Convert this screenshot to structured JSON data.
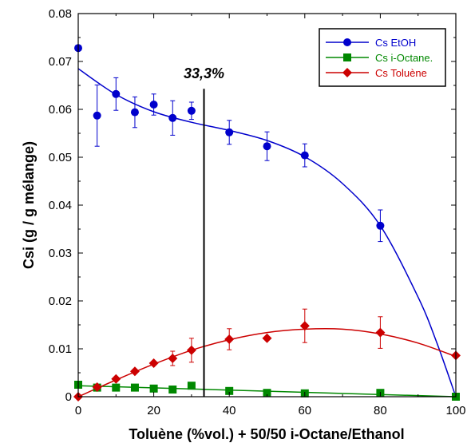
{
  "chart_data": {
    "type": "scatter",
    "xlabel": "Toluène (%vol.) + 50/50 i-Octane/Ethanol",
    "ylabel": "Csi (g / g mélange)",
    "xlim": [
      0,
      100
    ],
    "ylim": [
      0,
      0.08
    ],
    "x_ticks": [
      "0",
      "20",
      "40",
      "60",
      "80",
      "100"
    ],
    "y_ticks": [
      "0",
      "0.01",
      "0.02",
      "0.03",
      "0.04",
      "0.05",
      "0.06",
      "0.07",
      "0.08"
    ],
    "grid": false,
    "legend_position": "top-right",
    "annotation": {
      "label": "33,3%",
      "x": 33.3
    },
    "series": [
      {
        "name": "Cs EtOH",
        "color": "#0000cc",
        "marker": "circle",
        "x": [
          0,
          5,
          10,
          15,
          20,
          25,
          30,
          40,
          50,
          60,
          80,
          100
        ],
        "y": [
          0.0728,
          0.0587,
          0.0632,
          0.0594,
          0.061,
          0.0582,
          0.0597,
          0.0552,
          0.0523,
          0.0504,
          0.0357,
          0.0
        ],
        "error": [
          0,
          0.0064,
          0.0034,
          0.0032,
          0.0022,
          0.0036,
          0.0018,
          0.0025,
          0.003,
          0.0024,
          0.0033,
          0
        ],
        "fit_x": [
          0,
          10,
          20,
          30,
          40,
          50,
          60,
          70,
          80,
          90,
          95,
          100
        ],
        "fit_y": [
          0.0685,
          0.0631,
          0.0595,
          0.0573,
          0.0556,
          0.0535,
          0.0501,
          0.0445,
          0.0357,
          0.0208,
          0.0112,
          0.0
        ]
      },
      {
        "name": "Cs i-Octane.",
        "color": "#008800",
        "marker": "square",
        "x": [
          0,
          5,
          10,
          15,
          20,
          25,
          30,
          40,
          50,
          60,
          80,
          100
        ],
        "y": [
          0.0025,
          0.0019,
          0.0019,
          0.0019,
          0.0017,
          0.0015,
          0.0023,
          0.0012,
          0.0008,
          0.0007,
          0.0008,
          0.0
        ],
        "error": [],
        "fit_x": [
          0,
          100
        ],
        "fit_y": [
          0.0023,
          0.0
        ]
      },
      {
        "name": "Cs Toluène",
        "color": "#cc0000",
        "marker": "diamond",
        "x": [
          0,
          5,
          10,
          15,
          20,
          25,
          30,
          40,
          50,
          60,
          80,
          100
        ],
        "y": [
          0.0,
          0.002,
          0.0037,
          0.0053,
          0.007,
          0.008,
          0.0097,
          0.012,
          0.0122,
          0.0148,
          0.0134,
          0.0086
        ],
        "error": [
          0,
          0,
          0,
          0,
          0,
          0.0015,
          0.0025,
          0.0022,
          0,
          0.0035,
          0.0033,
          0
        ],
        "fit_x": [
          0,
          10,
          20,
          30,
          40,
          50,
          60,
          70,
          80,
          90,
          100
        ],
        "fit_y": [
          0.0,
          0.0035,
          0.0068,
          0.0097,
          0.0119,
          0.0134,
          0.0141,
          0.0141,
          0.0131,
          0.0112,
          0.0084
        ]
      }
    ]
  }
}
